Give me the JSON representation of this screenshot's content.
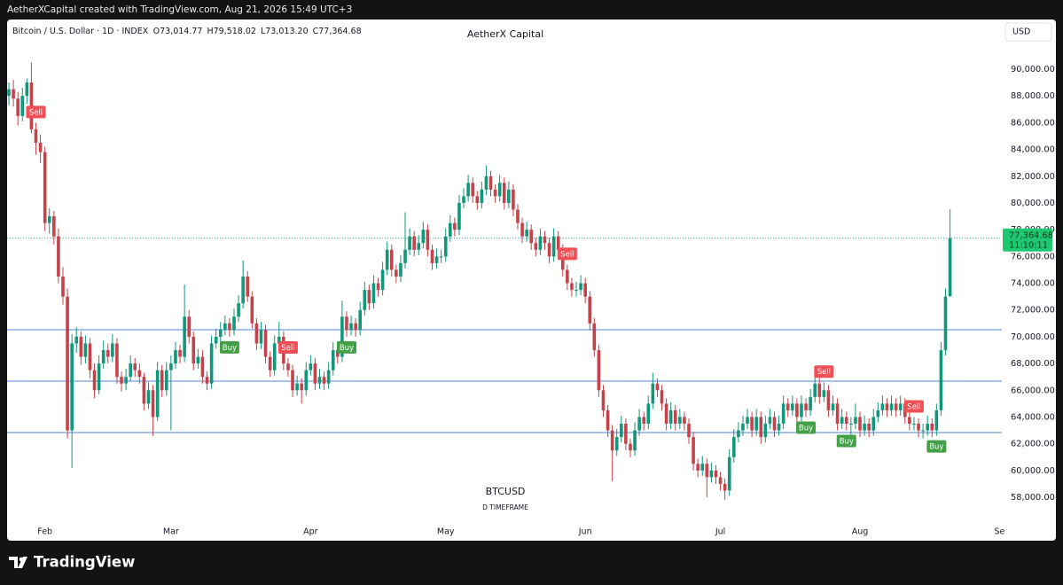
{
  "top_bar": {
    "text": "AetherXCapital created with TradingView.com, Aug 21, 2026 15:49 UTC+3"
  },
  "footer": {
    "brand": "TradingView"
  },
  "chart_data": {
    "type": "candlestick",
    "symbol": "Bitcoin / U.S. Dollar · 1D · INDEX",
    "ohlc_legend": [
      {
        "key": "O",
        "value": "73,014.77"
      },
      {
        "key": "H",
        "value": "79,518.02"
      },
      {
        "key": "L",
        "value": "73,013.20"
      },
      {
        "key": "C",
        "value": "77,364.68"
      }
    ],
    "title": "AetherX Capital",
    "currency": "USD",
    "watermark": "BTCUSD",
    "watermark_sub": "D TIMEFRAME",
    "colors": {
      "up": "#12977a",
      "down": "#c4434a",
      "level": "#4f86d8",
      "last": "#1fc770"
    },
    "ylim": [
      56080,
      91990
    ],
    "yticks": [
      {
        "value": 58000,
        "label": "58,000.00"
      },
      {
        "value": 60000,
        "label": "60,000.00"
      },
      {
        "value": 62000,
        "label": "62,000.00"
      },
      {
        "value": 64000,
        "label": "64,000.00"
      },
      {
        "value": 66000,
        "label": "66,000.00"
      },
      {
        "value": 68000,
        "label": "68,000.00"
      },
      {
        "value": 70000,
        "label": "70,000.00"
      },
      {
        "value": 72000,
        "label": "72,000.00"
      },
      {
        "value": 74000,
        "label": "74,000.00"
      },
      {
        "value": 76000,
        "label": "76,000.00"
      },
      {
        "value": 78000,
        "label": "78,000.00"
      },
      {
        "value": 80000,
        "label": "80,000.00"
      },
      {
        "value": 82000,
        "label": "82,000.00"
      },
      {
        "value": 84000,
        "label": "84,000.00"
      },
      {
        "value": 86000,
        "label": "86,000.00"
      },
      {
        "value": 88000,
        "label": "88,000.00"
      },
      {
        "value": 90000,
        "label": "90,000.00"
      }
    ],
    "xlim": [
      -0.4,
      220.5
    ],
    "xticks": [
      {
        "value": 8,
        "label": "Feb"
      },
      {
        "value": 36,
        "label": "Mar"
      },
      {
        "value": 67,
        "label": "Apr"
      },
      {
        "value": 97,
        "label": "May"
      },
      {
        "value": 128,
        "label": "Jun"
      },
      {
        "value": 158,
        "label": "Jul"
      },
      {
        "value": 189,
        "label": "Aug"
      },
      {
        "value": 220,
        "label": "Se"
      }
    ],
    "levels": [
      70520,
      66680,
      62840
    ],
    "last_price_label": "77,364.68",
    "countdown": "11:10:11",
    "signals": [
      {
        "index": 6,
        "label": "Sell"
      },
      {
        "index": 49,
        "label": "Buy"
      },
      {
        "index": 62,
        "label": "Sell"
      },
      {
        "index": 75,
        "label": "Buy"
      },
      {
        "index": 124,
        "label": "Sell"
      },
      {
        "index": 177,
        "label": "Buy"
      },
      {
        "index": 181,
        "label": "Sell"
      },
      {
        "index": 186,
        "label": "Buy"
      },
      {
        "index": 201,
        "label": "Sell"
      },
      {
        "index": 206,
        "label": "Buy"
      }
    ],
    "candles": [
      [
        88000,
        89000,
        87300,
        88500
      ],
      [
        88500,
        89200,
        87200,
        87800
      ],
      [
        87800,
        88300,
        85800,
        86500
      ],
      [
        86500,
        88600,
        86100,
        88000
      ],
      [
        88000,
        89300,
        87400,
        89000
      ],
      [
        89000,
        90500,
        85200,
        85500
      ],
      [
        85500,
        86000,
        83600,
        84500
      ],
      [
        84500,
        85100,
        83000,
        83800
      ],
      [
        83800,
        84200,
        77900,
        78500
      ],
      [
        78500,
        79600,
        77700,
        79000
      ],
      [
        79000,
        79400,
        76900,
        77500
      ],
      [
        77500,
        78100,
        74000,
        74500
      ],
      [
        74500,
        75200,
        72400,
        73000
      ],
      [
        73000,
        73600,
        62400,
        63000
      ],
      [
        63000,
        70200,
        60200,
        69500
      ],
      [
        69500,
        70700,
        68800,
        70000
      ],
      [
        70000,
        70400,
        67900,
        68500
      ],
      [
        68500,
        70100,
        68000,
        69500
      ],
      [
        69500,
        69900,
        66900,
        67500
      ],
      [
        67500,
        68000,
        65400,
        66000
      ],
      [
        66000,
        68600,
        65700,
        68000
      ],
      [
        68000,
        69700,
        67600,
        69000
      ],
      [
        69000,
        69500,
        68000,
        68500
      ],
      [
        68500,
        70200,
        68100,
        69500
      ],
      [
        69500,
        69900,
        66500,
        67000
      ],
      [
        67000,
        67400,
        65900,
        66500
      ],
      [
        66500,
        67600,
        66000,
        67000
      ],
      [
        67000,
        68600,
        66700,
        68000
      ],
      [
        68000,
        68400,
        67000,
        67500
      ],
      [
        67500,
        68000,
        66500,
        67000
      ],
      [
        67000,
        67300,
        64500,
        65000
      ],
      [
        65000,
        66600,
        64600,
        66000
      ],
      [
        66000,
        66400,
        62600,
        64000
      ],
      [
        64000,
        68100,
        63700,
        67500
      ],
      [
        67500,
        67900,
        65500,
        66000
      ],
      [
        66000,
        68100,
        65600,
        67500
      ],
      [
        67500,
        68600,
        63000,
        68000
      ],
      [
        68000,
        69600,
        67600,
        69000
      ],
      [
        69000,
        69400,
        68000,
        68500
      ],
      [
        68500,
        73900,
        68100,
        71500
      ],
      [
        71500,
        72000,
        69500,
        70000
      ],
      [
        70000,
        70400,
        67500,
        68000
      ],
      [
        68000,
        69100,
        67600,
        68500
      ],
      [
        68500,
        69000,
        66500,
        67000
      ],
      [
        67000,
        67400,
        66000,
        66500
      ],
      [
        66500,
        70100,
        66100,
        69500
      ],
      [
        69500,
        70600,
        69100,
        70000
      ],
      [
        70000,
        71100,
        69600,
        70500
      ],
      [
        70500,
        71600,
        70100,
        71000
      ],
      [
        71000,
        71400,
        70000,
        70500
      ],
      [
        70500,
        72100,
        70100,
        71500
      ],
      [
        71500,
        73100,
        71100,
        72500
      ],
      [
        72500,
        75700,
        72100,
        74500
      ],
      [
        74500,
        74900,
        72600,
        73000
      ],
      [
        73000,
        73400,
        70600,
        71000
      ],
      [
        71000,
        71400,
        69000,
        69500
      ],
      [
        69500,
        71100,
        69100,
        70500
      ],
      [
        70500,
        70900,
        68000,
        68500
      ],
      [
        68500,
        68900,
        67000,
        67500
      ],
      [
        67500,
        70100,
        67100,
        69500
      ],
      [
        69500,
        71100,
        69100,
        70000
      ],
      [
        70000,
        70400,
        67500,
        68000
      ],
      [
        68000,
        68400,
        67000,
        67500
      ],
      [
        67500,
        67900,
        65500,
        66000
      ],
      [
        66000,
        67100,
        65600,
        66500
      ],
      [
        66500,
        66900,
        65000,
        66000
      ],
      [
        66000,
        68100,
        65600,
        67500
      ],
      [
        67500,
        68600,
        67100,
        68000
      ],
      [
        68000,
        68400,
        66000,
        66500
      ],
      [
        66500,
        67600,
        66100,
        67000
      ],
      [
        67000,
        67400,
        66000,
        66500
      ],
      [
        66500,
        68100,
        66100,
        67500
      ],
      [
        67500,
        69600,
        67100,
        69000
      ],
      [
        69000,
        69400,
        68000,
        68500
      ],
      [
        68500,
        72700,
        68100,
        71500
      ],
      [
        71500,
        71900,
        70000,
        70500
      ],
      [
        70500,
        71600,
        70100,
        71000
      ],
      [
        71000,
        71400,
        70000,
        70500
      ],
      [
        70500,
        72600,
        70100,
        72000
      ],
      [
        72000,
        74100,
        71600,
        73500
      ],
      [
        73500,
        73900,
        72000,
        72500
      ],
      [
        72500,
        74600,
        72100,
        74000
      ],
      [
        74000,
        74400,
        73000,
        73500
      ],
      [
        73500,
        75600,
        73100,
        75000
      ],
      [
        75000,
        77100,
        74600,
        76500
      ],
      [
        76500,
        76900,
        74500,
        75000
      ],
      [
        75000,
        75400,
        74000,
        74500
      ],
      [
        74500,
        76100,
        74100,
        75500
      ],
      [
        75500,
        79300,
        75100,
        76500
      ],
      [
        76500,
        78100,
        76100,
        77500
      ],
      [
        77500,
        77900,
        76000,
        76500
      ],
      [
        76500,
        77600,
        76100,
        77000
      ],
      [
        77000,
        78600,
        76600,
        78000
      ],
      [
        78000,
        78400,
        76000,
        76500
      ],
      [
        76500,
        76900,
        75000,
        75500
      ],
      [
        75500,
        76600,
        75100,
        76000
      ],
      [
        76000,
        76500,
        75500,
        76000
      ],
      [
        76000,
        78100,
        75600,
        77500
      ],
      [
        77500,
        79100,
        77100,
        78500
      ],
      [
        78500,
        78900,
        77500,
        78000
      ],
      [
        78000,
        80600,
        77600,
        80000
      ],
      [
        80000,
        81100,
        79600,
        80500
      ],
      [
        80500,
        82100,
        80100,
        81500
      ],
      [
        81500,
        81900,
        80000,
        80500
      ],
      [
        80500,
        80900,
        79500,
        80000
      ],
      [
        80000,
        81600,
        79600,
        81000
      ],
      [
        81000,
        82800,
        80600,
        82000
      ],
      [
        82000,
        82400,
        80500,
        81000
      ],
      [
        81000,
        81400,
        80000,
        80500
      ],
      [
        80500,
        82100,
        80100,
        81500
      ],
      [
        81500,
        81900,
        79500,
        80000
      ],
      [
        80000,
        81600,
        79600,
        81000
      ],
      [
        81000,
        81400,
        79000,
        79500
      ],
      [
        79500,
        79900,
        78000,
        78500
      ],
      [
        78500,
        78900,
        77000,
        77500
      ],
      [
        77500,
        78600,
        77100,
        78000
      ],
      [
        78000,
        78400,
        76500,
        77000
      ],
      [
        77000,
        77400,
        76000,
        76500
      ],
      [
        76500,
        78100,
        76100,
        77500
      ],
      [
        77500,
        77900,
        76500,
        77000
      ],
      [
        77000,
        77400,
        75500,
        76000
      ],
      [
        76000,
        78100,
        75600,
        77500
      ],
      [
        77500,
        77900,
        76000,
        76500
      ],
      [
        76500,
        76900,
        74500,
        75000
      ],
      [
        75000,
        75400,
        73500,
        74000
      ],
      [
        74000,
        74400,
        73000,
        73500
      ],
      [
        73500,
        74100,
        73000,
        73500
      ],
      [
        73500,
        74600,
        73100,
        74000
      ],
      [
        74000,
        74400,
        72500,
        73000
      ],
      [
        73000,
        73400,
        70500,
        71000
      ],
      [
        71000,
        71400,
        68500,
        69000
      ],
      [
        69000,
        69400,
        65500,
        66000
      ],
      [
        66000,
        66400,
        64000,
        64500
      ],
      [
        64500,
        64900,
        62500,
        63000
      ],
      [
        63000,
        63400,
        59200,
        61500
      ],
      [
        61500,
        63100,
        61100,
        62500
      ],
      [
        62500,
        64100,
        62100,
        63500
      ],
      [
        63500,
        63900,
        61500,
        62000
      ],
      [
        62000,
        62400,
        61000,
        61500
      ],
      [
        61500,
        63600,
        61100,
        63000
      ],
      [
        63000,
        64600,
        62600,
        64000
      ],
      [
        64000,
        64400,
        63000,
        63500
      ],
      [
        63500,
        65600,
        63100,
        65000
      ],
      [
        65000,
        67300,
        64600,
        66500
      ],
      [
        66500,
        66900,
        65500,
        66000
      ],
      [
        66000,
        66400,
        64500,
        65000
      ],
      [
        65000,
        65400,
        63000,
        63500
      ],
      [
        63500,
        65100,
        63100,
        64500
      ],
      [
        64500,
        64900,
        63000,
        63500
      ],
      [
        63500,
        64600,
        63100,
        64000
      ],
      [
        64000,
        64400,
        63000,
        63500
      ],
      [
        63500,
        63900,
        62000,
        62500
      ],
      [
        62500,
        62900,
        60000,
        60500
      ],
      [
        60500,
        60900,
        59500,
        60000
      ],
      [
        60000,
        61100,
        59600,
        60500
      ],
      [
        60500,
        60900,
        58000,
        59500
      ],
      [
        59500,
        60600,
        59100,
        60000
      ],
      [
        60000,
        60400,
        59000,
        59500
      ],
      [
        59500,
        59900,
        58500,
        59000
      ],
      [
        59000,
        59400,
        57800,
        58500
      ],
      [
        58500,
        61600,
        58100,
        61000
      ],
      [
        61000,
        63100,
        60600,
        62500
      ],
      [
        62500,
        63600,
        62100,
        63000
      ],
      [
        63000,
        64100,
        62600,
        63500
      ],
      [
        63500,
        64600,
        63100,
        64000
      ],
      [
        64000,
        64400,
        62500,
        63000
      ],
      [
        63000,
        64600,
        62600,
        64000
      ],
      [
        64000,
        64400,
        62000,
        62500
      ],
      [
        62500,
        64100,
        62100,
        63500
      ],
      [
        63500,
        64600,
        63100,
        64000
      ],
      [
        64000,
        64400,
        62500,
        63000
      ],
      [
        63000,
        64100,
        62600,
        63500
      ],
      [
        63500,
        65600,
        63100,
        65000
      ],
      [
        65000,
        65400,
        64000,
        64500
      ],
      [
        64500,
        65600,
        64100,
        65000
      ],
      [
        65000,
        65400,
        63500,
        64000
      ],
      [
        64000,
        65600,
        63600,
        65000
      ],
      [
        65000,
        65400,
        64000,
        64500
      ],
      [
        64500,
        66100,
        64100,
        65500
      ],
      [
        65500,
        67000,
        65100,
        66500
      ],
      [
        66500,
        66900,
        65000,
        65500
      ],
      [
        65500,
        66600,
        65100,
        66000
      ],
      [
        66000,
        66400,
        64000,
        64500
      ],
      [
        64500,
        65600,
        64100,
        65000
      ],
      [
        65000,
        65400,
        63000,
        63500
      ],
      [
        63500,
        64600,
        63100,
        64000
      ],
      [
        64000,
        64400,
        63000,
        63500
      ],
      [
        63500,
        64000,
        62400,
        63500
      ],
      [
        63500,
        65000,
        63100,
        64000
      ],
      [
        64000,
        64400,
        62500,
        63000
      ],
      [
        63000,
        64100,
        62600,
        63500
      ],
      [
        63500,
        63900,
        62500,
        63000
      ],
      [
        63000,
        64600,
        62600,
        64000
      ],
      [
        64000,
        65100,
        63600,
        64500
      ],
      [
        64500,
        65600,
        64100,
        65000
      ],
      [
        65000,
        65400,
        64000,
        64500
      ],
      [
        64500,
        65600,
        64100,
        65000
      ],
      [
        65000,
        65400,
        64000,
        64500
      ],
      [
        64500,
        65600,
        64100,
        65000
      ],
      [
        65000,
        65400,
        63500,
        64000
      ],
      [
        64000,
        64400,
        63000,
        63500
      ],
      [
        63500,
        64000,
        63000,
        63500
      ],
      [
        63500,
        63900,
        62500,
        63000
      ],
      [
        63000,
        63500,
        62400,
        63000
      ],
      [
        63000,
        64100,
        62600,
        63500
      ],
      [
        63500,
        63900,
        62500,
        63000
      ],
      [
        63000,
        65000,
        62600,
        64500
      ],
      [
        64500,
        69600,
        64100,
        69000
      ],
      [
        69000,
        73600,
        68600,
        73000
      ],
      [
        73014.77,
        79518.02,
        73013.2,
        77364.68
      ]
    ]
  }
}
